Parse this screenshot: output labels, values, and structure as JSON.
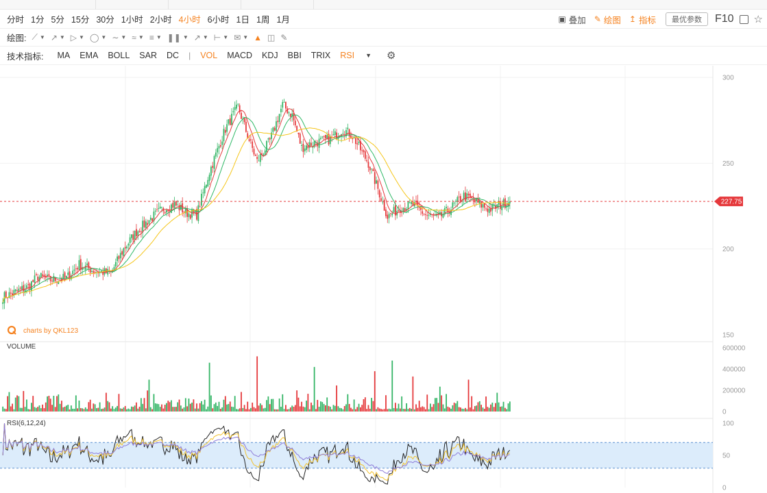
{
  "toolbar": {
    "periods": [
      "分时",
      "1分",
      "5分",
      "15分",
      "30分",
      "1小时",
      "2小时",
      "4小时",
      "6小时",
      "1日",
      "1周",
      "1月"
    ],
    "active_period": "4小时",
    "overlay_label": "叠加",
    "draw_label": "绘图",
    "indicator_label": "指标",
    "param_button": "最优参数",
    "f10_label": "F10"
  },
  "drawing_bar": {
    "label": "绘图:",
    "tools": [
      "line-tool",
      "ray-tool",
      "channel-tool",
      "shape-tool",
      "fib-tool",
      "pattern-tool",
      "text-tool",
      "bars-tool",
      "arrow-tool",
      "measure-tool",
      "comment-tool",
      "marker-tool",
      "delete-icon",
      "eraser-icon"
    ]
  },
  "indicator_bar": {
    "label": "技术指标:",
    "main_indicators": [
      "MA",
      "EMA",
      "BOLL",
      "SAR",
      "DC"
    ],
    "separator": "|",
    "sub_indicators": [
      "VOL",
      "MACD",
      "KDJ",
      "BBI",
      "TRIX",
      "RSI"
    ],
    "active": [
      "VOL",
      "RSI"
    ]
  },
  "colors": {
    "up": "#34b566",
    "down": "#e5383b",
    "ma_short": "#e5383b",
    "ma_mid": "#2eb866",
    "ma_long": "#f5c518",
    "accent": "#f5821f",
    "rsi1": "#222222",
    "rsi2": "#f2c12e",
    "rsi3": "#8d7bd8",
    "rsi_band": "#dcecfb"
  },
  "chart_data": [
    {
      "type": "candlestick",
      "axis_ticks": [
        "300",
        "250",
        "200",
        "150"
      ],
      "ylim": [
        150,
        300
      ],
      "last_price": "227.75",
      "watermark": "charts by QKL123",
      "anchors": [
        [
          0,
          172
        ],
        [
          8,
          175
        ],
        [
          16,
          178
        ],
        [
          22,
          184
        ],
        [
          30,
          182
        ],
        [
          40,
          183
        ],
        [
          48,
          191
        ],
        [
          58,
          187
        ],
        [
          68,
          186
        ],
        [
          76,
          200
        ],
        [
          84,
          210
        ],
        [
          92,
          217
        ],
        [
          100,
          223
        ],
        [
          108,
          226
        ],
        [
          116,
          221
        ],
        [
          122,
          220
        ],
        [
          130,
          245
        ],
        [
          140,
          270
        ],
        [
          148,
          283
        ],
        [
          154,
          266
        ],
        [
          160,
          251
        ],
        [
          168,
          263
        ],
        [
          176,
          284
        ],
        [
          182,
          278
        ],
        [
          188,
          259
        ],
        [
          196,
          262
        ],
        [
          206,
          264
        ],
        [
          214,
          270
        ],
        [
          220,
          266
        ],
        [
          230,
          250
        ],
        [
          236,
          235
        ],
        [
          242,
          219
        ],
        [
          250,
          224
        ],
        [
          258,
          226
        ],
        [
          266,
          220
        ],
        [
          274,
          218
        ],
        [
          282,
          224
        ],
        [
          290,
          231
        ],
        [
          298,
          227
        ],
        [
          306,
          223
        ],
        [
          314,
          226
        ],
        [
          318,
          227.75
        ]
      ],
      "candle_count": 320
    },
    {
      "type": "bar",
      "title": "VOLUME",
      "axis_ticks": [
        "600000",
        "400000",
        "200000",
        "0"
      ],
      "ylim": [
        0,
        600000
      ],
      "spikes": [
        [
          92,
          300000
        ],
        [
          130,
          460000
        ],
        [
          160,
          520000
        ],
        [
          196,
          420000
        ],
        [
          234,
          380000
        ],
        [
          245,
          480000
        ],
        [
          258,
          330000
        ],
        [
          293,
          300000
        ]
      ]
    },
    {
      "type": "line",
      "title": "RSI(6,12,24)",
      "axis_ticks": [
        "100",
        "50",
        "0"
      ],
      "ylim": [
        0,
        100
      ],
      "band": [
        30,
        70
      ],
      "series": [
        {
          "name": "RSI6",
          "color": "#222222"
        },
        {
          "name": "RSI12",
          "color": "#f2c12e"
        },
        {
          "name": "RSI24",
          "color": "#8d7bd8"
        }
      ]
    }
  ]
}
